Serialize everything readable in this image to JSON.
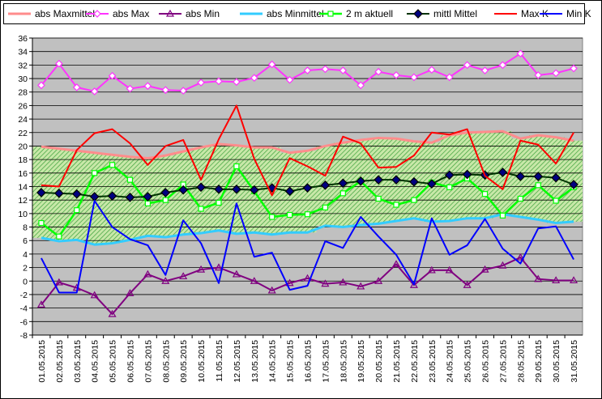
{
  "chart_data": {
    "type": "line",
    "title": "",
    "xlabel": "",
    "ylabel": "",
    "ylim": [
      -8,
      36
    ],
    "yticks": [
      -8,
      -6,
      -4,
      -2,
      0,
      2,
      4,
      6,
      8,
      10,
      12,
      14,
      16,
      18,
      20,
      22,
      24,
      26,
      28,
      30,
      32,
      34,
      36
    ],
    "grid": true,
    "legend_position": "top",
    "categories": [
      "01.05.2015",
      "02.05.2015",
      "03.05.2015",
      "04.05.2015",
      "05.05.2015",
      "06.05.2015",
      "07.05.2015",
      "08.05.2015",
      "09.05.2015",
      "10.05.2015",
      "11.05.2015",
      "12.05.2015",
      "13.05.2015",
      "14.05.2015",
      "15.05.2015",
      "16.05.2015",
      "17.05.2015",
      "18.05.2015",
      "19.05.2015",
      "20.05.2015",
      "21.05.2015",
      "22.05.2015",
      "23.05.2015",
      "24.05.2015",
      "25.05.2015",
      "26.05.2015",
      "27.05.2015",
      "28.05.2015",
      "29.05.2015",
      "30.05.2015",
      "31.05.2015"
    ],
    "band": {
      "upper_series": "abs Maxmittel",
      "lower_series": "abs Minmittel",
      "fill": "#c8e8a8",
      "hatch": "#3ca03c"
    },
    "series": [
      {
        "name": "abs Maxmittel",
        "color": "#ff8c8c",
        "marker": "none",
        "width": 3,
        "values": [
          19.9,
          19.6,
          19.3,
          19.0,
          18.7,
          18.4,
          18.2,
          18.6,
          19.2,
          19.8,
          20.3,
          20.1,
          19.8,
          19.8,
          19.0,
          19.3,
          20.0,
          20.5,
          20.9,
          21.2,
          21.1,
          20.7,
          20.5,
          21.6,
          22.0,
          22.1,
          22.2,
          21.1,
          21.6,
          21.3,
          20.8
        ]
      },
      {
        "name": "abs Max",
        "color": "#ff33ff",
        "marker": "diamond-open",
        "width": 2,
        "values": [
          29.0,
          32.2,
          28.7,
          28.1,
          30.4,
          28.5,
          28.9,
          28.3,
          28.2,
          29.4,
          29.6,
          29.5,
          30.1,
          32.1,
          29.8,
          31.2,
          31.4,
          31.2,
          29.0,
          31.0,
          30.5,
          30.2,
          31.3,
          30.2,
          32.0,
          31.2,
          32.0,
          33.7,
          30.5,
          30.8,
          31.5
        ]
      },
      {
        "name": "abs Min",
        "color": "#800080",
        "marker": "triangle-open",
        "width": 2,
        "values": [
          -3.5,
          -0.2,
          -1.0,
          -2.1,
          -4.9,
          -1.8,
          1.0,
          0.0,
          0.7,
          1.7,
          2.0,
          1.0,
          0.0,
          -1.4,
          -0.3,
          0.4,
          -0.4,
          -0.2,
          -0.8,
          0.0,
          2.5,
          -0.6,
          1.6,
          1.6,
          -0.6,
          1.7,
          2.3,
          3.5,
          0.3,
          0.1,
          0.1
        ]
      },
      {
        "name": "abs Minmittel",
        "color": "#33ccff",
        "marker": "none",
        "width": 3,
        "values": [
          6.4,
          5.9,
          6.1,
          5.4,
          5.6,
          6.1,
          6.7,
          6.5,
          6.9,
          7.1,
          7.5,
          7.0,
          7.2,
          6.9,
          7.2,
          7.2,
          8.2,
          8.0,
          8.3,
          8.5,
          8.9,
          9.3,
          8.8,
          8.9,
          9.3,
          9.3,
          9.9,
          9.5,
          9.1,
          8.6,
          8.8
        ]
      },
      {
        "name": "2 m aktuell",
        "color": "#00ff00",
        "marker": "square-open",
        "width": 2.5,
        "values": [
          8.6,
          6.6,
          10.5,
          16.0,
          17.2,
          15.0,
          11.5,
          12.0,
          14.3,
          10.7,
          11.6,
          17.0,
          13.3,
          9.5,
          9.8,
          9.9,
          10.9,
          13.0,
          14.8,
          12.2,
          11.3,
          12.0,
          14.6,
          13.9,
          15.2,
          12.9,
          9.7,
          12.2,
          14.2,
          11.9,
          13.9
        ]
      },
      {
        "name": "mittl Mittel",
        "color": "#003300",
        "marker": "diamond-filled",
        "marker_color": "#000080",
        "width": 2,
        "values": [
          13.1,
          13.0,
          12.9,
          12.5,
          12.6,
          12.4,
          12.5,
          13.1,
          13.5,
          13.9,
          13.6,
          13.6,
          13.5,
          13.8,
          13.3,
          13.8,
          14.2,
          14.5,
          14.8,
          15.0,
          15.0,
          14.7,
          14.4,
          15.7,
          15.8,
          15.7,
          16.1,
          15.5,
          15.5,
          15.3,
          14.3
        ]
      },
      {
        "name": "Max K",
        "color": "#ff0000",
        "marker": "none",
        "width": 2,
        "values": [
          14.2,
          14.0,
          19.4,
          21.9,
          22.5,
          20.4,
          17.2,
          20.0,
          20.9,
          15.0,
          21.0,
          26.0,
          18.1,
          12.7,
          18.2,
          17.0,
          15.6,
          21.4,
          20.4,
          16.8,
          16.9,
          18.6,
          22.0,
          21.7,
          22.5,
          15.6,
          13.6,
          20.8,
          20.2,
          17.4,
          22.0
        ]
      },
      {
        "name": "Min K",
        "color": "#0000ff",
        "marker": "none",
        "width": 2,
        "values": [
          3.4,
          -1.7,
          -1.7,
          11.9,
          8.0,
          6.2,
          5.3,
          0.9,
          9.0,
          5.6,
          -0.3,
          11.5,
          3.6,
          4.2,
          -1.3,
          -0.7,
          5.9,
          4.9,
          9.5,
          6.6,
          3.9,
          -0.5,
          9.3,
          3.9,
          5.3,
          9.2,
          4.8,
          2.6,
          7.8,
          8.1,
          3.2
        ]
      }
    ]
  }
}
